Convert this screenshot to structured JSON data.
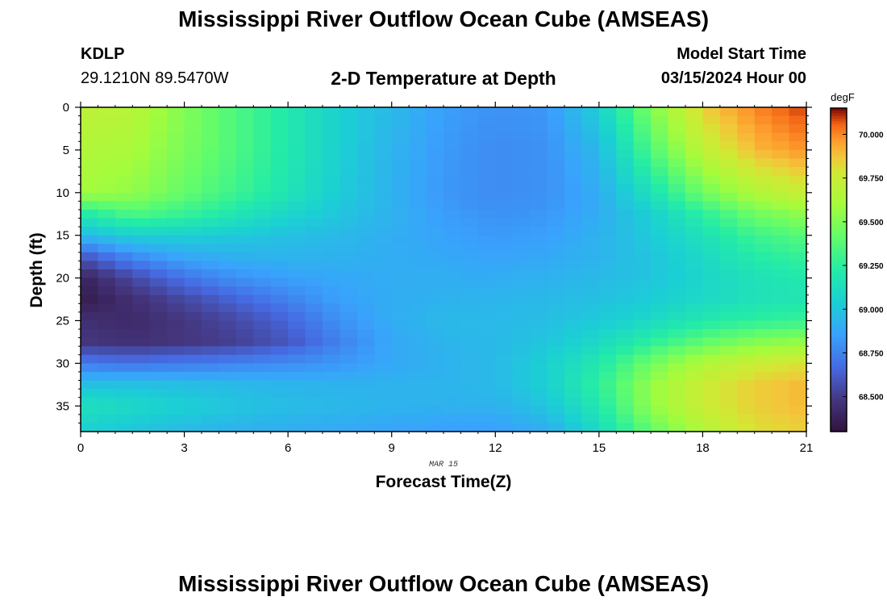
{
  "header": {
    "title": "Mississippi River Outflow Ocean Cube (AMSEAS)",
    "station": "KDLP",
    "coords": "29.1210N  89.5470W",
    "subtitle": "2-D Temperature at Depth",
    "start_label": "Model Start Time",
    "start_value": "03/15/2024 Hour 00"
  },
  "footer": {
    "title": "Mississippi River Outflow Ocean Cube (AMSEAS)"
  },
  "chart_data": {
    "type": "heatmap",
    "title": "2-D Temperature at Depth",
    "xlabel": "Forecast Time(Z)",
    "ylabel": "Depth (ft)",
    "x_annotation": "MAR 15",
    "xlim": [
      0,
      21
    ],
    "ylim": [
      38,
      0
    ],
    "xticks": [
      0,
      3,
      6,
      9,
      12,
      15,
      18,
      21
    ],
    "yticks": [
      0,
      5,
      10,
      15,
      20,
      25,
      30,
      35
    ],
    "colorbar": {
      "unit": "degF",
      "range": [
        68.3,
        70.15
      ],
      "ticks": [
        "70.000",
        "69.750",
        "69.500",
        "69.250",
        "69.000",
        "68.750",
        "68.500"
      ],
      "tick_values": [
        70.0,
        69.75,
        69.5,
        69.25,
        69.0,
        68.75,
        68.5
      ]
    },
    "value_grid": {
      "x_hours": [
        0,
        1.5,
        3,
        4.5,
        6,
        7.5,
        9,
        10.5,
        12,
        13.5,
        15,
        16.5,
        18,
        19.5,
        21
      ],
      "depths_ft": [
        0,
        5,
        10,
        12.5,
        15,
        17.5,
        20,
        22.5,
        25,
        27.5,
        30,
        32.5,
        35,
        38
      ],
      "values": [
        [
          69.7,
          69.68,
          69.5,
          69.35,
          69.2,
          69.05,
          68.95,
          68.85,
          68.8,
          68.82,
          69.05,
          69.5,
          69.85,
          70.0,
          70.1
        ],
        [
          69.65,
          69.62,
          69.48,
          69.35,
          69.2,
          69.05,
          68.93,
          68.83,
          68.78,
          68.8,
          68.95,
          69.35,
          69.7,
          69.9,
          69.98
        ],
        [
          69.6,
          69.55,
          69.42,
          69.3,
          69.17,
          69.03,
          68.92,
          68.82,
          68.78,
          68.8,
          68.9,
          69.15,
          69.45,
          69.65,
          69.75
        ],
        [
          69.2,
          69.35,
          69.28,
          69.18,
          69.08,
          69.0,
          68.92,
          68.84,
          68.8,
          68.82,
          68.9,
          69.05,
          69.25,
          69.45,
          69.55
        ],
        [
          68.95,
          69.05,
          69.05,
          69.02,
          68.98,
          68.95,
          68.9,
          68.86,
          68.83,
          68.85,
          68.92,
          69.02,
          69.15,
          69.3,
          69.38
        ],
        [
          68.6,
          68.78,
          68.88,
          68.92,
          68.93,
          68.92,
          68.9,
          68.88,
          68.86,
          68.88,
          68.93,
          69.0,
          69.1,
          69.22,
          69.28
        ],
        [
          68.38,
          68.55,
          68.7,
          68.8,
          68.85,
          68.88,
          68.9,
          68.9,
          68.9,
          68.92,
          68.95,
          69.0,
          69.08,
          69.15,
          69.2
        ],
        [
          68.35,
          68.45,
          68.55,
          68.65,
          68.75,
          68.85,
          68.9,
          68.92,
          68.93,
          68.95,
          68.98,
          69.03,
          69.1,
          69.15,
          69.18
        ],
        [
          68.45,
          68.42,
          68.48,
          68.55,
          68.65,
          68.8,
          68.9,
          68.95,
          68.95,
          68.97,
          69.02,
          69.1,
          69.2,
          69.25,
          69.28
        ],
        [
          68.48,
          68.45,
          68.48,
          68.52,
          68.6,
          68.75,
          68.88,
          68.93,
          68.95,
          69.0,
          69.1,
          69.25,
          69.4,
          69.5,
          69.55
        ],
        [
          68.72,
          68.7,
          68.72,
          68.75,
          68.78,
          68.82,
          68.88,
          68.92,
          68.95,
          69.05,
          69.2,
          69.45,
          69.65,
          69.75,
          69.8
        ],
        [
          68.98,
          68.98,
          68.97,
          68.95,
          68.93,
          68.92,
          68.92,
          68.93,
          68.95,
          69.05,
          69.25,
          69.55,
          69.75,
          69.85,
          69.9
        ],
        [
          69.15,
          69.1,
          69.05,
          69.0,
          68.97,
          68.95,
          68.93,
          68.92,
          68.92,
          69.0,
          69.2,
          69.55,
          69.75,
          69.85,
          69.9
        ],
        [
          69.05,
          69.0,
          68.95,
          68.92,
          68.9,
          68.88,
          68.86,
          68.84,
          68.84,
          68.9,
          69.1,
          69.4,
          69.65,
          69.8,
          69.85
        ]
      ]
    }
  }
}
